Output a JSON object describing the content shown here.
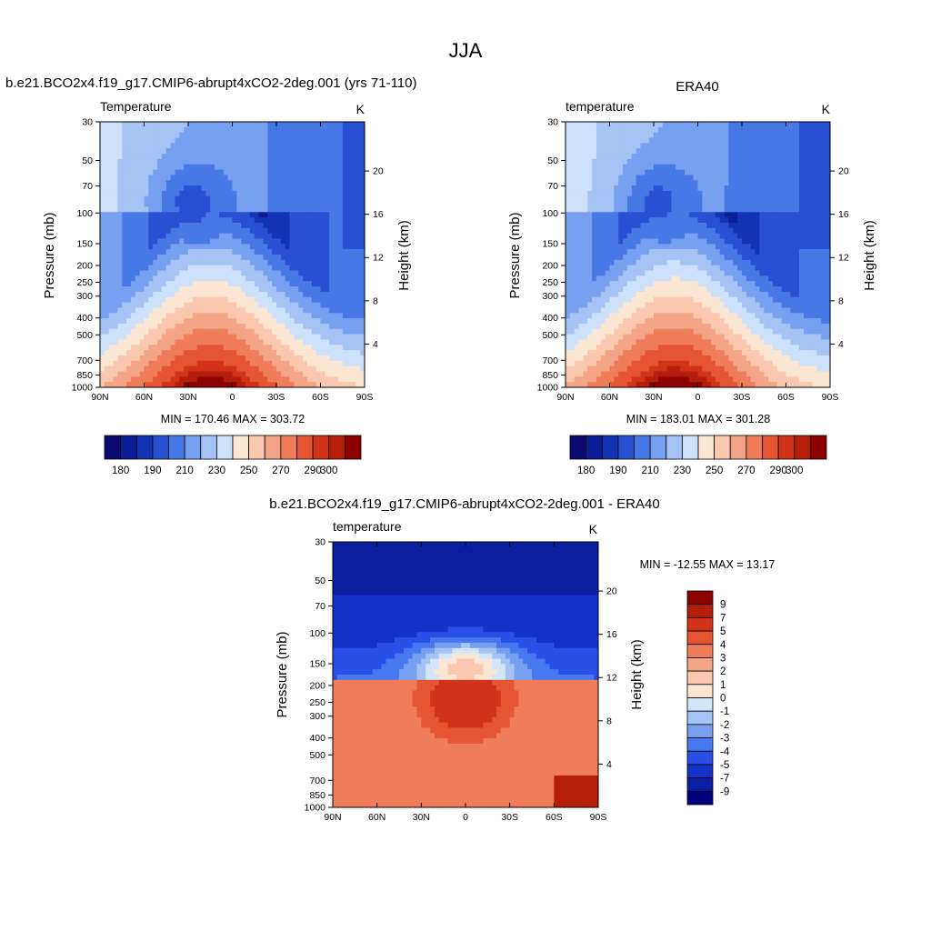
{
  "figure": {
    "title": "JJA"
  },
  "panels": [
    {
      "id": "model",
      "title": "b.e21.BCO2x4.f19_g17.CMIP6-abrupt4xCO2-2deg.001 (yrs 71-110)",
      "left_label": "Temperature",
      "right_label": "K",
      "stats": "MIN = 170.46  MAX = 303.72"
    },
    {
      "id": "obs",
      "title": "ERA40",
      "left_label": "temperature",
      "right_label": "K",
      "stats": "MIN = 183.01  MAX = 301.28"
    },
    {
      "id": "diff",
      "title": "b.e21.BCO2x4.f19_g17.CMIP6-abrupt4xCO2-2deg.001 - ERA40",
      "left_label": "temperature",
      "right_label": "K",
      "stats": "MIN = -12.55  MAX =  13.17"
    }
  ],
  "axes": {
    "ylabel_left": "Pressure (mb)",
    "ylabel_right": "Height (km)",
    "x_ticks": [
      "90N",
      "60N",
      "30N",
      "0",
      "30S",
      "60S",
      "90S"
    ],
    "p_ticks": [
      "30",
      "50",
      "70",
      "100",
      "150",
      "200",
      "250",
      "300",
      "400",
      "500",
      "700",
      "850",
      "1000"
    ],
    "h_ticks_full": [
      "4",
      "8",
      "12",
      "16",
      "20"
    ],
    "h_ticks_diff": [
      "4",
      "8",
      "12",
      "16",
      "20"
    ]
  },
  "colorbars": {
    "temp_labels": [
      "180",
      "190",
      "210",
      "230",
      "250",
      "270",
      "290",
      "300"
    ],
    "diff_labels": [
      "9",
      "7",
      "5",
      "4",
      "3",
      "2",
      "1",
      "0",
      "-1",
      "-2",
      "-3",
      "-4",
      "-5",
      "-7",
      "-9"
    ]
  },
  "chart_data": [
    {
      "type": "heatmap",
      "panel": "model",
      "x": "latitude 90N to 90S",
      "y": "pressure 1000 to 30 mb (log)",
      "min": 170.46,
      "max": 303.72,
      "levels": [
        180,
        185,
        190,
        200,
        210,
        220,
        230,
        240,
        250,
        260,
        270,
        280,
        290,
        295,
        300
      ],
      "colors": [
        "#0a0a73",
        "#0a1e96",
        "#1432b4",
        "#2850d2",
        "#4678e6",
        "#78a0f0",
        "#a5c3f5",
        "#cde1fa",
        "#fae6d2",
        "#fac8af",
        "#f5a587",
        "#f07d5a",
        "#e65532",
        "#d23219",
        "#b41e0a",
        "#8c0000"
      ]
    },
    {
      "type": "heatmap",
      "panel": "obs",
      "x": "latitude 90N to 90S",
      "y": "pressure 1000 to 30 mb (log)",
      "min": 183.01,
      "max": 301.28
    },
    {
      "type": "heatmap",
      "panel": "diff",
      "x": "latitude 90N to 90S",
      "y": "pressure 1000 to 30 mb (log)",
      "min": -12.55,
      "max": 13.17,
      "levels": [
        -9,
        -7,
        -5,
        -4,
        -3,
        -2,
        -1,
        0,
        1,
        2,
        3,
        4,
        5,
        7,
        9
      ],
      "colors": [
        "#00007d",
        "#0a1ea0",
        "#1432c8",
        "#2850e6",
        "#4678f0",
        "#78a0f0",
        "#a5c3f5",
        "#d2e6fa",
        "#fae6d2",
        "#fac8af",
        "#f5a587",
        "#f07d5a",
        "#e65532",
        "#d23219",
        "#b41e0a",
        "#8c0000"
      ]
    }
  ]
}
